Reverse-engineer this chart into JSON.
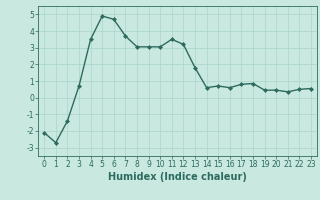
{
  "x": [
    0,
    1,
    2,
    3,
    4,
    5,
    6,
    7,
    8,
    9,
    10,
    11,
    12,
    13,
    14,
    15,
    16,
    17,
    18,
    19,
    20,
    21,
    22,
    23
  ],
  "y": [
    -2.1,
    -2.7,
    -1.4,
    0.7,
    3.5,
    4.9,
    4.7,
    3.7,
    3.05,
    3.05,
    3.05,
    3.5,
    3.2,
    1.8,
    0.6,
    0.7,
    0.6,
    0.8,
    0.85,
    0.45,
    0.45,
    0.35,
    0.5,
    0.55
  ],
  "line_color": "#2e6b5e",
  "marker": "D",
  "marker_size": 2.0,
  "linewidth": 1.0,
  "xlabel": "Humidex (Indice chaleur)",
  "xlim": [
    -0.5,
    23.5
  ],
  "ylim": [
    -3.5,
    5.5
  ],
  "yticks": [
    -3,
    -2,
    -1,
    0,
    1,
    2,
    3,
    4,
    5
  ],
  "xticks": [
    0,
    1,
    2,
    3,
    4,
    5,
    6,
    7,
    8,
    9,
    10,
    11,
    12,
    13,
    14,
    15,
    16,
    17,
    18,
    19,
    20,
    21,
    22,
    23
  ],
  "background_color": "#c8e8e0",
  "grid_color": "#b0d8ce",
  "tick_label_fontsize": 5.5,
  "xlabel_fontsize": 7.0,
  "xlabel_fontweight": "bold"
}
